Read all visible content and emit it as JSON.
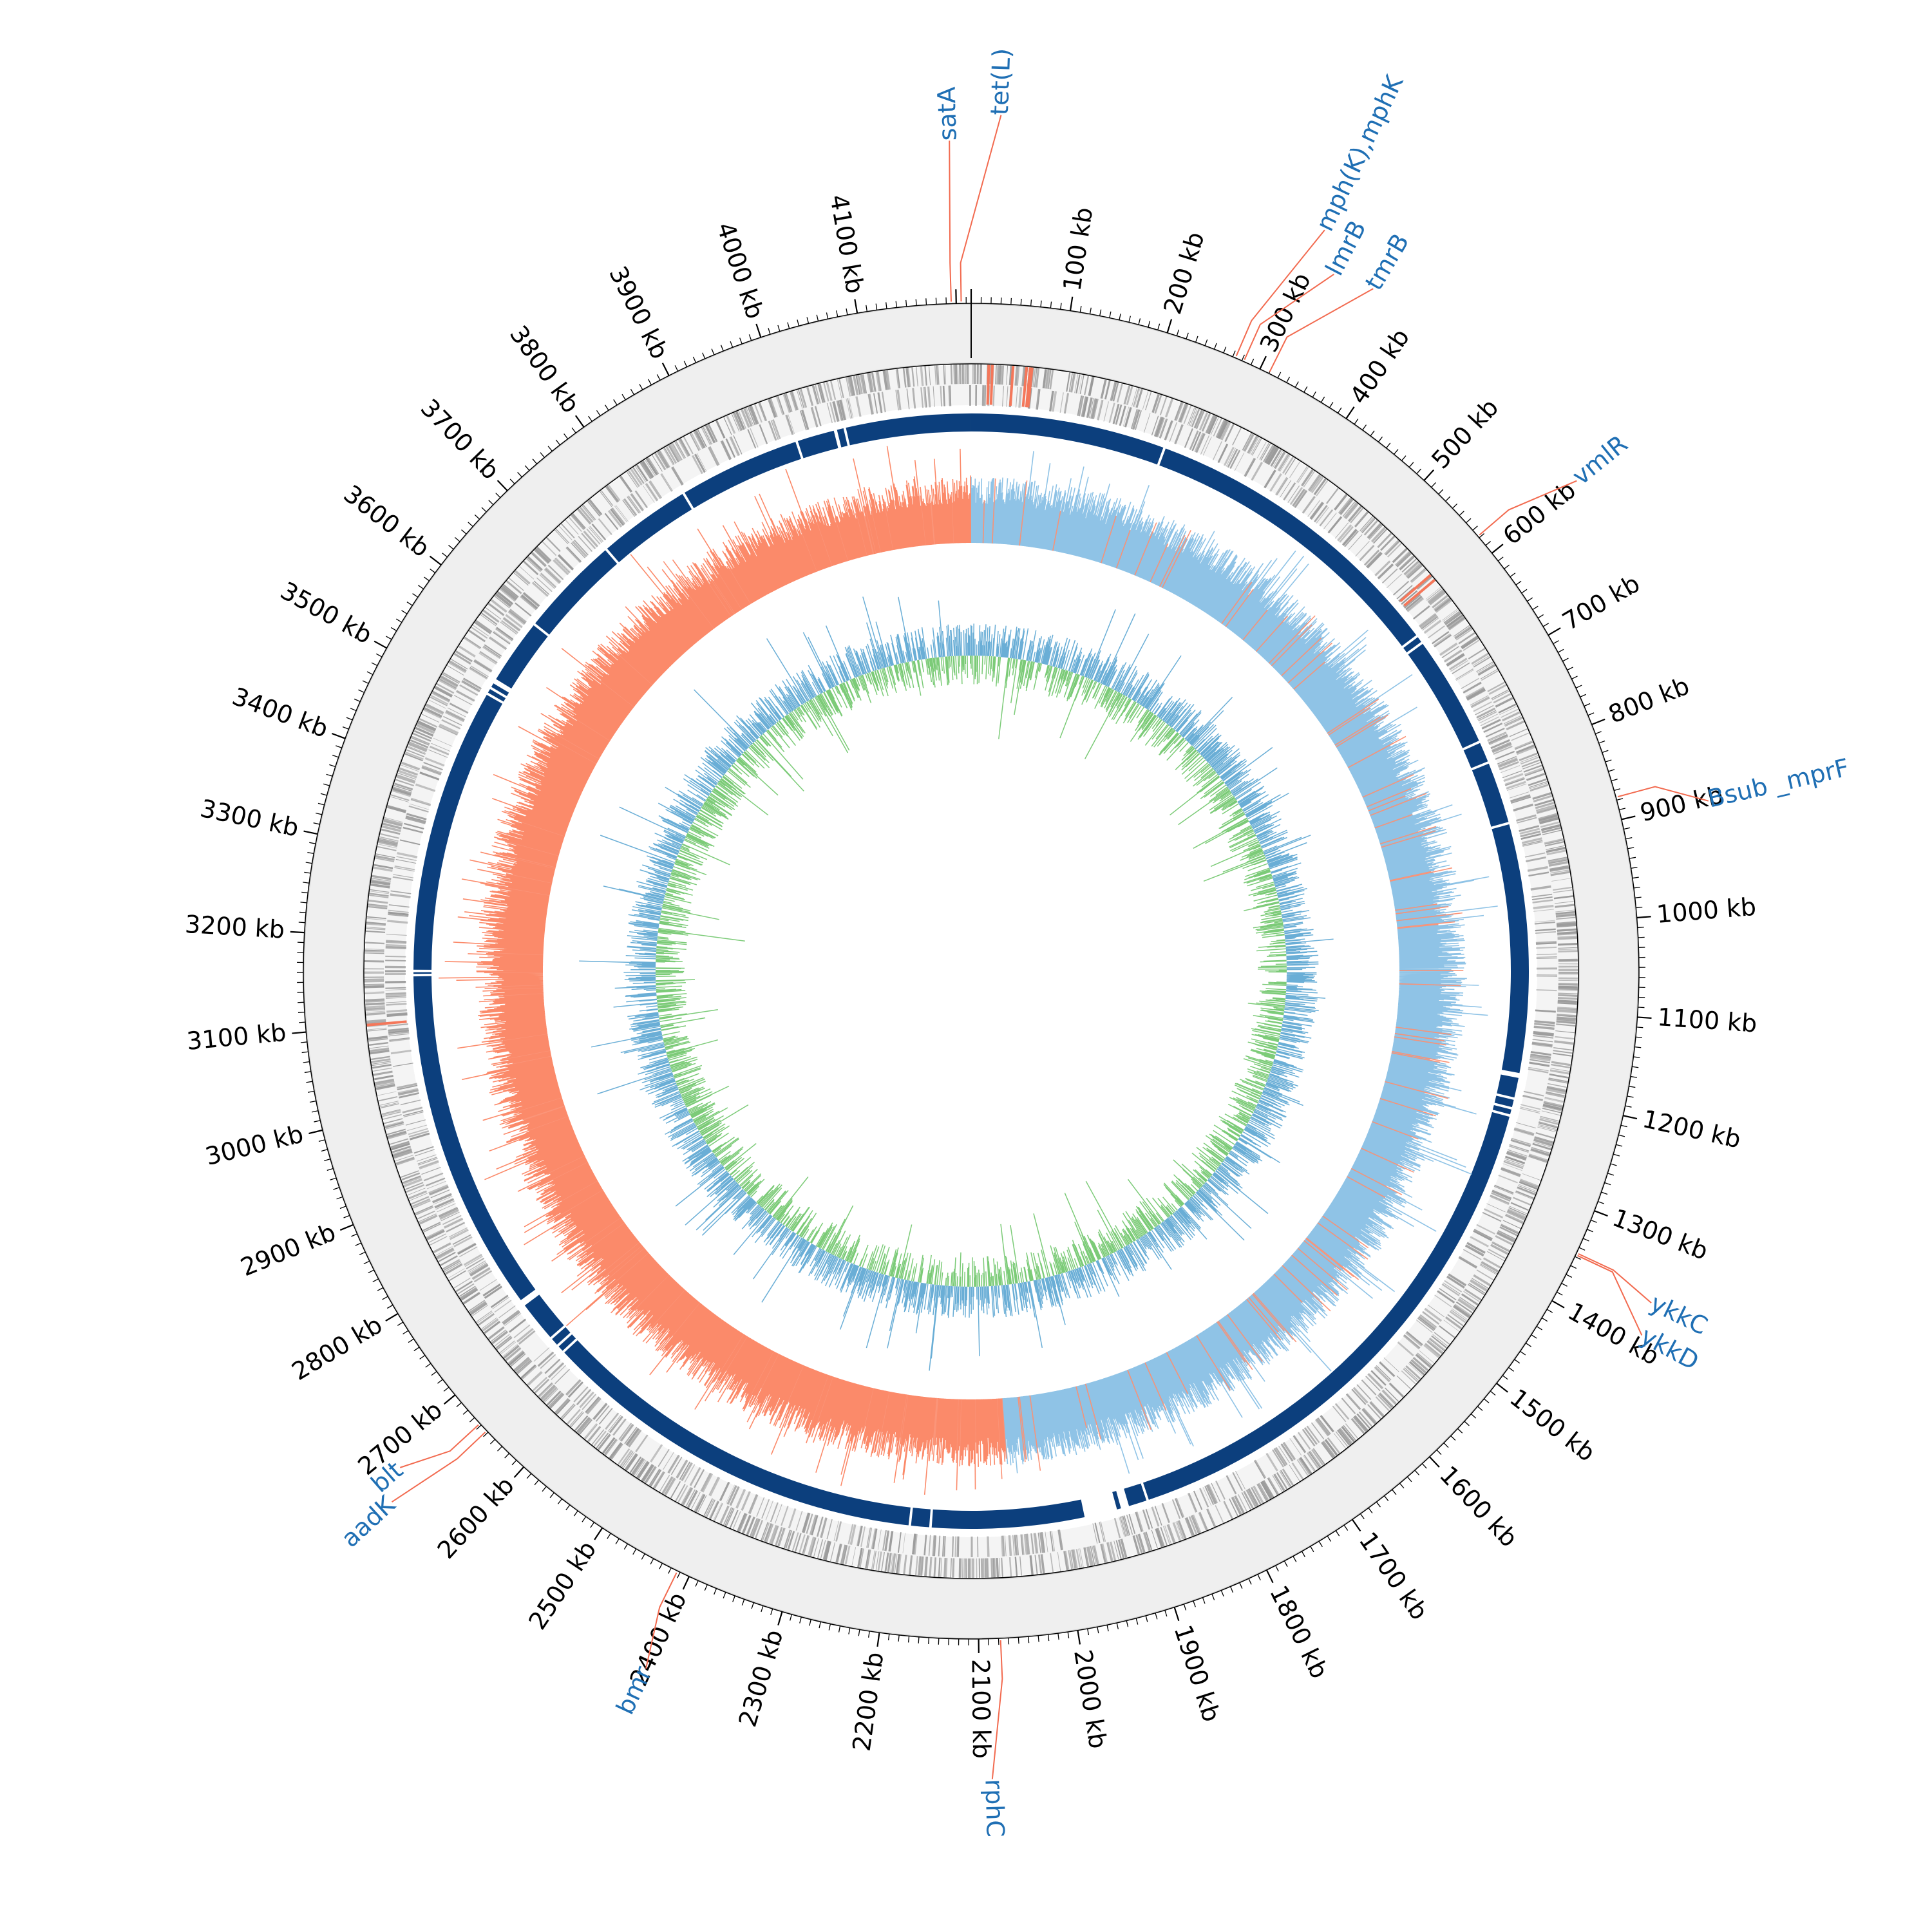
{
  "chart_data": {
    "type": "circular-genome-map",
    "genome_length_kb": 4215,
    "scale_tick_labels": [
      {
        "kb": 100,
        "label": "100 kb"
      },
      {
        "kb": 200,
        "label": "200 kb"
      },
      {
        "kb": 300,
        "label": "300 kb"
      },
      {
        "kb": 400,
        "label": "400 kb"
      },
      {
        "kb": 500,
        "label": "500 kb"
      },
      {
        "kb": 600,
        "label": "600 kb"
      },
      {
        "kb": 700,
        "label": "700 kb"
      },
      {
        "kb": 800,
        "label": "800 kb"
      },
      {
        "kb": 900,
        "label": "900 kb"
      },
      {
        "kb": 1000,
        "label": "1000 kb"
      },
      {
        "kb": 1100,
        "label": "1100 kb"
      },
      {
        "kb": 1200,
        "label": "1200 kb"
      },
      {
        "kb": 1300,
        "label": "1300 kb"
      },
      {
        "kb": 1400,
        "label": "1400 kb"
      },
      {
        "kb": 1500,
        "label": "1500 kb"
      },
      {
        "kb": 1600,
        "label": "1600 kb"
      },
      {
        "kb": 1700,
        "label": "1700 kb"
      },
      {
        "kb": 1800,
        "label": "1800 kb"
      },
      {
        "kb": 1900,
        "label": "1900 kb"
      },
      {
        "kb": 2000,
        "label": "2000 kb"
      },
      {
        "kb": 2100,
        "label": "2100 kb"
      },
      {
        "kb": 2200,
        "label": "2200 kb"
      },
      {
        "kb": 2300,
        "label": "2300 kb"
      },
      {
        "kb": 2400,
        "label": "2400 kb"
      },
      {
        "kb": 2500,
        "label": "2500 kb"
      },
      {
        "kb": 2600,
        "label": "2600 kb"
      },
      {
        "kb": 2700,
        "label": "2700 kb"
      },
      {
        "kb": 2800,
        "label": "2800 kb"
      },
      {
        "kb": 2900,
        "label": "2900 kb"
      },
      {
        "kb": 3000,
        "label": "3000 kb"
      },
      {
        "kb": 3100,
        "label": "3100 kb"
      },
      {
        "kb": 3200,
        "label": "3200 kb"
      },
      {
        "kb": 3300,
        "label": "3300 kb"
      },
      {
        "kb": 3400,
        "label": "3400 kb"
      },
      {
        "kb": 3500,
        "label": "3500 kb"
      },
      {
        "kb": 3600,
        "label": "3600 kb"
      },
      {
        "kb": 3700,
        "label": "3700 kb"
      },
      {
        "kb": 3800,
        "label": "3800 kb"
      },
      {
        "kb": 3900,
        "label": "3900 kb"
      },
      {
        "kb": 4000,
        "label": "4000 kb"
      },
      {
        "kb": 4100,
        "label": "4100 kb"
      }
    ],
    "annotated_genes": [
      {
        "name": "tet(L)",
        "kb": 4205
      },
      {
        "name": "satA",
        "kb": 4195
      },
      {
        "name": "mph(K),mphK",
        "kb": 273
      },
      {
        "name": "lmrB",
        "kb": 282
      },
      {
        "name": "tmrB",
        "kb": 310
      },
      {
        "name": "vmlR",
        "kb": 578
      },
      {
        "name": "Bsub _mprF",
        "kb": 877
      },
      {
        "name": "ykkC",
        "kb": 1346
      },
      {
        "name": "ykkD",
        "kb": 1348
      },
      {
        "name": "rphC",
        "kb": 2078
      },
      {
        "name": "bmr",
        "kb": 2413
      },
      {
        "name": "aadK",
        "kb": 2652
      },
      {
        "name": "blt",
        "kb": 2662
      }
    ],
    "homology_gaps_kb": [
      4048,
      4060,
      4000,
      3850,
      3735,
      3610,
      3525,
      3517,
      3509,
      3160,
      3155,
      2730,
      2678,
      2666,
      2656,
      2180,
      2155,
      1930,
      1915,
      1890,
      1228,
      1219,
      1207,
      1180,
      1177,
      872,
      795,
      768,
      630,
      620,
      236
    ],
    "cds_track_accent_kb": [
      18,
      22,
      45,
      60,
      64,
      66,
      575,
      582,
      3100
    ],
    "gc_skew_switch_kb": [
      0,
      2060
    ],
    "colors": {
      "ruler_band": "#efefef",
      "cds": "#9a9a9a",
      "cds_accent": "#f4775a",
      "homology": "#0c3f7d",
      "gc_skew_positive": "#8fc3e6",
      "gc_skew_negative": "#fb8a6a",
      "gc_content_above": "#6aaed6",
      "gc_content_below": "#7ccb78",
      "gene_label": "#1f6fb4",
      "gene_leader": "#f26a4f",
      "tick_label": "#000000"
    }
  }
}
